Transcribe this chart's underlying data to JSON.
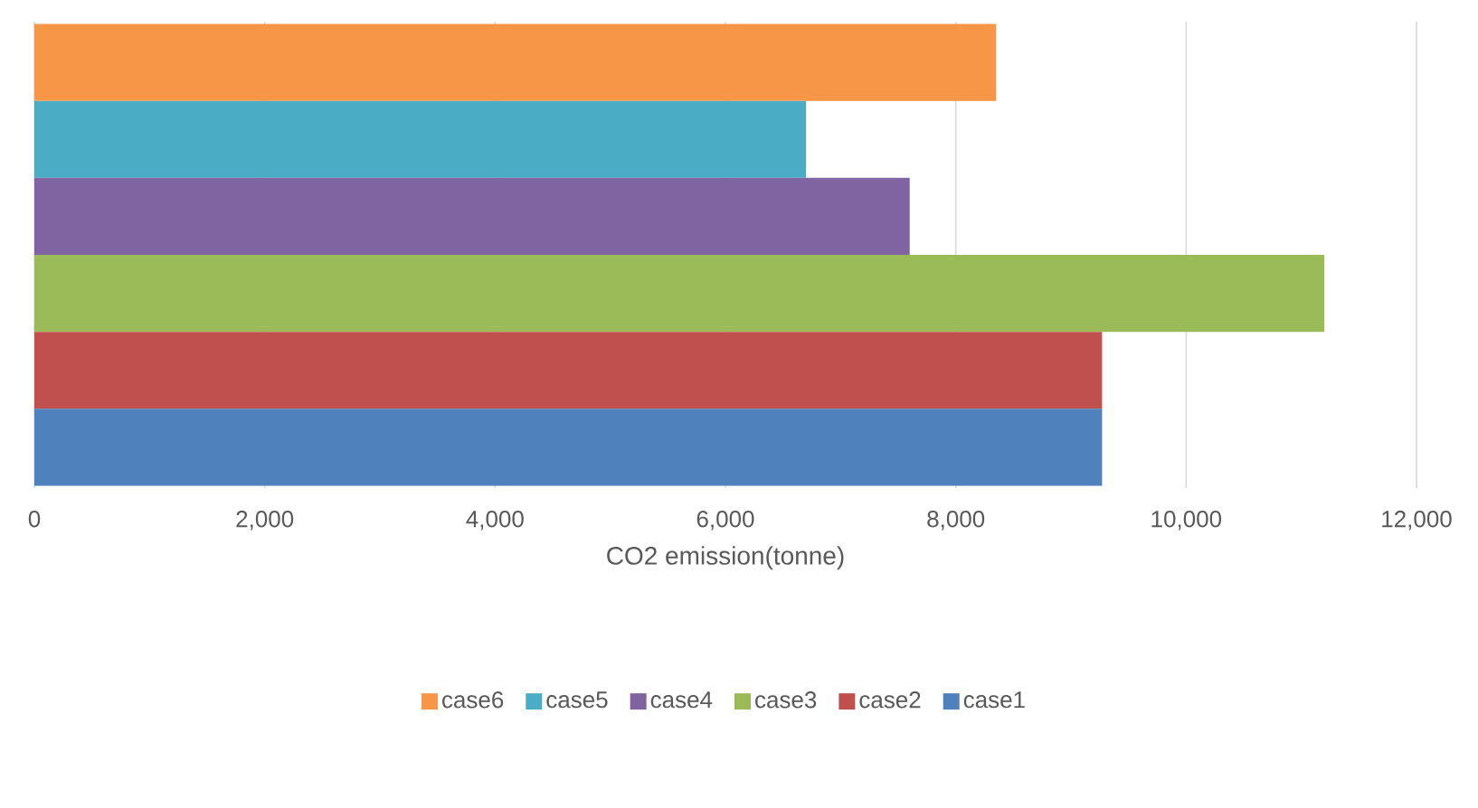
{
  "chart_data": {
    "type": "bar",
    "orientation": "horizontal",
    "categories": [
      null
    ],
    "series": [
      {
        "name": "case6",
        "color": "#f79646",
        "values": [
          8350
        ]
      },
      {
        "name": "case5",
        "color": "#4bacc6",
        "values": [
          6700
        ]
      },
      {
        "name": "case4",
        "color": "#8064a2",
        "values": [
          7600
        ]
      },
      {
        "name": "case3",
        "color": "#9bbb59",
        "values": [
          11200
        ]
      },
      {
        "name": "case2",
        "color": "#c0504d",
        "values": [
          9270
        ]
      },
      {
        "name": "case1",
        "color": "#4f81bd",
        "values": [
          9270
        ]
      }
    ],
    "xlim": [
      0,
      12000
    ],
    "xticks": [
      0,
      {
        "value": 2000,
        "label": "2,000"
      },
      {
        "value": 4000,
        "label": "4,000"
      },
      {
        "value": 6000,
        "label": "6,000"
      },
      {
        "value": 8000,
        "label": "8,000"
      },
      {
        "value": 10000,
        "label": "10,000"
      },
      {
        "value": 12000,
        "label": "12,000"
      }
    ],
    "xlabel": "CO2 emission(tonne)",
    "grid": "x",
    "legend": "bottom"
  }
}
